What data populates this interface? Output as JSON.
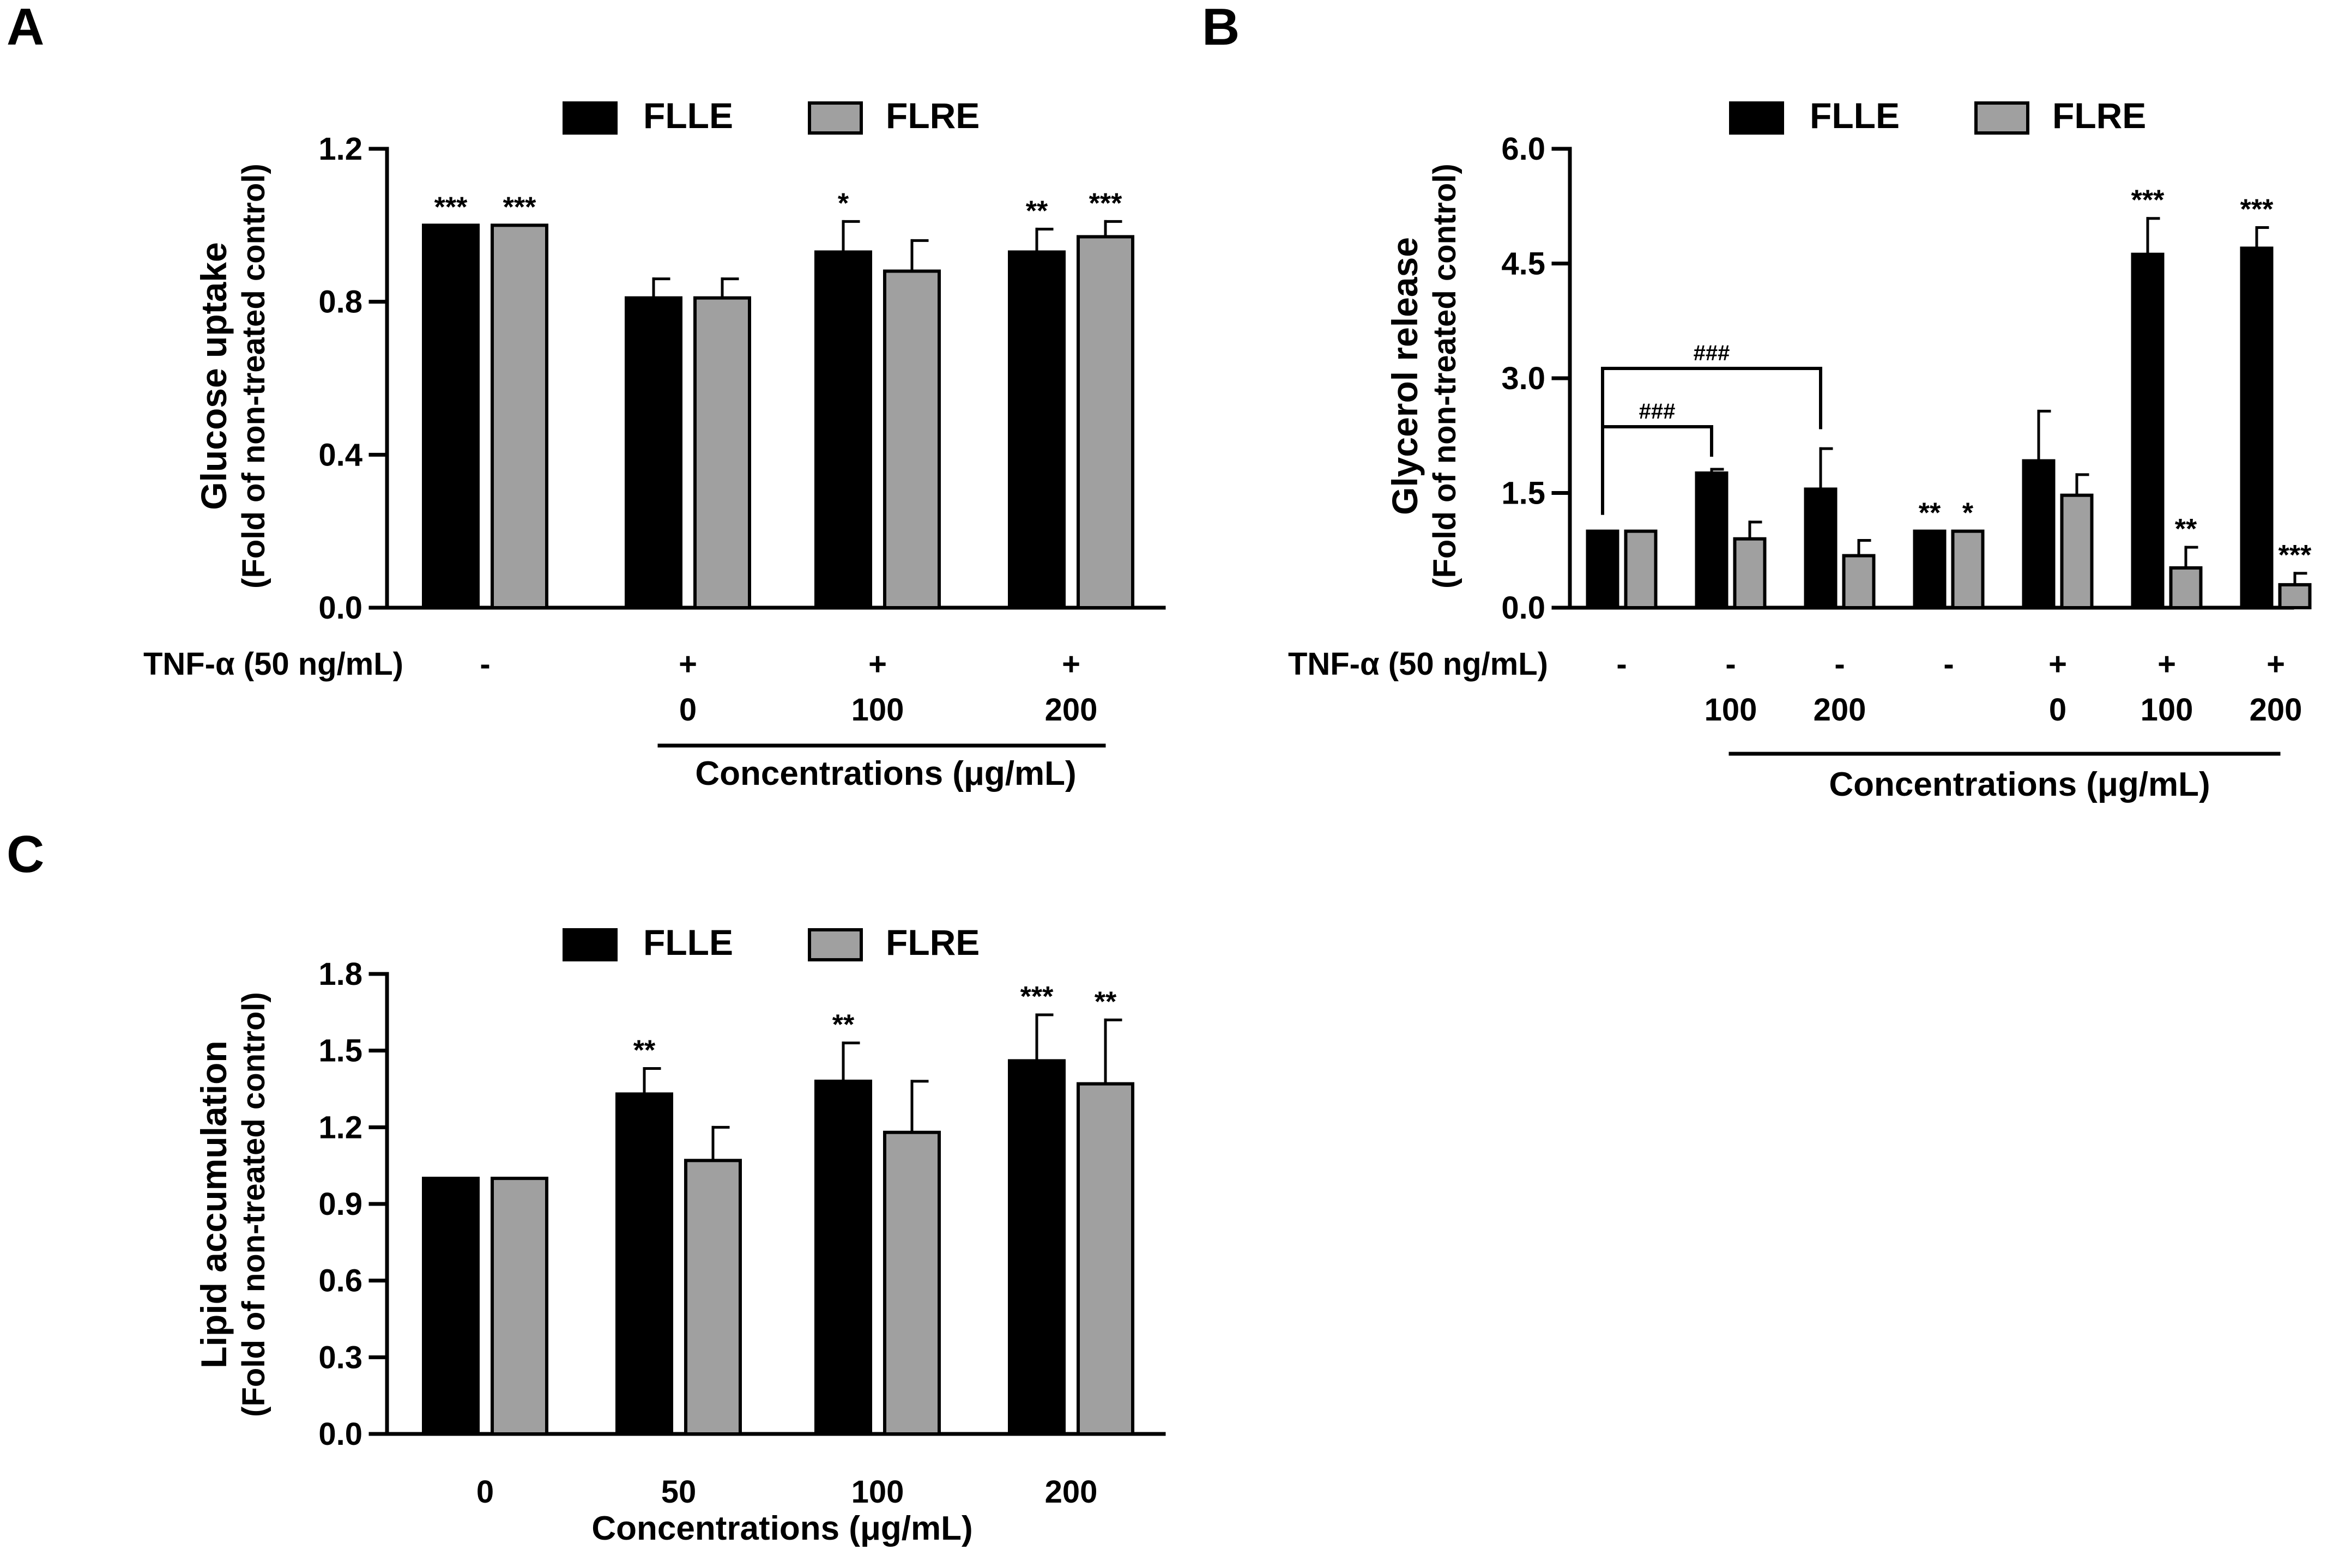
{
  "colors": {
    "flle": "#000000",
    "flre": "#a0a0a0",
    "axis": "#000000"
  },
  "chart_data": [
    {
      "panel": "A",
      "type": "bar",
      "ylabel": "Glucose uptake",
      "ylabel2": "(Fold of non-treated control)",
      "ylim": [
        0,
        1.2
      ],
      "yticks": [
        "0.0",
        "0.4",
        "0.8",
        "1.2"
      ],
      "legend": [
        "FLLE",
        "FLRE"
      ],
      "row_label": "TNF-α (50 ng/mL)",
      "xlabel": "Concentrations (μg/mL)",
      "groups": [
        {
          "tnf": "-",
          "conc": "",
          "flle": {
            "v": 1.0,
            "err": 0,
            "sig": "***"
          },
          "flre": {
            "v": 1.0,
            "err": 0,
            "sig": "***"
          }
        },
        {
          "tnf": "+",
          "conc": "0",
          "flle": {
            "v": 0.81,
            "err": 0.05,
            "sig": ""
          },
          "flre": {
            "v": 0.81,
            "err": 0.05,
            "sig": ""
          }
        },
        {
          "tnf": "+",
          "conc": "100",
          "flle": {
            "v": 0.93,
            "err": 0.08,
            "sig": "*"
          },
          "flre": {
            "v": 0.88,
            "err": 0.08,
            "sig": ""
          }
        },
        {
          "tnf": "+",
          "conc": "200",
          "flle": {
            "v": 0.93,
            "err": 0.06,
            "sig": "**"
          },
          "flre": {
            "v": 0.97,
            "err": 0.04,
            "sig": "***"
          }
        }
      ]
    },
    {
      "panel": "B",
      "type": "bar",
      "ylabel": "Glycerol release",
      "ylabel2": "(Fold of  non-treated control)",
      "ylim": [
        0,
        6.0
      ],
      "yticks": [
        "0.0",
        "1.5",
        "3.0",
        "4.5",
        "6.0"
      ],
      "legend": [
        "FLLE",
        "FLRE"
      ],
      "row_label": "TNF-α (50 ng/mL)",
      "xlabel": "Concentrations (μg/mL)",
      "brackets": [
        "###",
        "###"
      ],
      "groups": [
        {
          "tnf": "-",
          "conc": "",
          "flle": {
            "v": 1.0,
            "err": 0,
            "sig": ""
          },
          "flre": {
            "v": 1.0,
            "err": 0,
            "sig": ""
          }
        },
        {
          "tnf": "-",
          "conc": "100",
          "flle": {
            "v": 1.76,
            "err": 0.05,
            "sig": ""
          },
          "flre": {
            "v": 0.9,
            "err": 0.22,
            "sig": ""
          }
        },
        {
          "tnf": "-",
          "conc": "200",
          "flle": {
            "v": 1.55,
            "err": 0.53,
            "sig": ""
          },
          "flre": {
            "v": 0.68,
            "err": 0.2,
            "sig": ""
          }
        },
        {
          "tnf": "-",
          "conc": "",
          "flle": {
            "v": 1.0,
            "err": 0,
            "sig": "**"
          },
          "flre": {
            "v": 1.0,
            "err": 0,
            "sig": "*"
          }
        },
        {
          "tnf": "+",
          "conc": "0",
          "flle": {
            "v": 1.92,
            "err": 0.65,
            "sig": ""
          },
          "flre": {
            "v": 1.47,
            "err": 0.27,
            "sig": ""
          }
        },
        {
          "tnf": "+",
          "conc": "100",
          "flle": {
            "v": 4.62,
            "err": 0.47,
            "sig": "***"
          },
          "flre": {
            "v": 0.52,
            "err": 0.27,
            "sig": "**"
          }
        },
        {
          "tnf": "+",
          "conc": "200",
          "flle": {
            "v": 4.7,
            "err": 0.27,
            "sig": "***"
          },
          "flre": {
            "v": 0.3,
            "err": 0.15,
            "sig": "***"
          }
        }
      ]
    },
    {
      "panel": "C",
      "type": "bar",
      "ylabel": "Lipid accumulation",
      "ylabel2": "(Fold of non-treated control)",
      "ylim": [
        0,
        1.8
      ],
      "yticks": [
        "0.0",
        "0.3",
        "0.6",
        "0.9",
        "1.2",
        "1.5",
        "1.8"
      ],
      "legend": [
        "FLLE",
        "FLRE"
      ],
      "xlabel": "Concentrations (μg/mL)",
      "groups": [
        {
          "conc": "0",
          "flle": {
            "v": 1.0,
            "err": 0,
            "sig": ""
          },
          "flre": {
            "v": 1.0,
            "err": 0,
            "sig": ""
          }
        },
        {
          "conc": "50",
          "flle": {
            "v": 1.33,
            "err": 0.1,
            "sig": "**"
          },
          "flre": {
            "v": 1.07,
            "err": 0.13,
            "sig": ""
          }
        },
        {
          "conc": "100",
          "flle": {
            "v": 1.38,
            "err": 0.15,
            "sig": "**"
          },
          "flre": {
            "v": 1.18,
            "err": 0.2,
            "sig": ""
          }
        },
        {
          "conc": "200",
          "flle": {
            "v": 1.46,
            "err": 0.18,
            "sig": "***"
          },
          "flre": {
            "v": 1.37,
            "err": 0.25,
            "sig": "**"
          }
        }
      ]
    }
  ]
}
